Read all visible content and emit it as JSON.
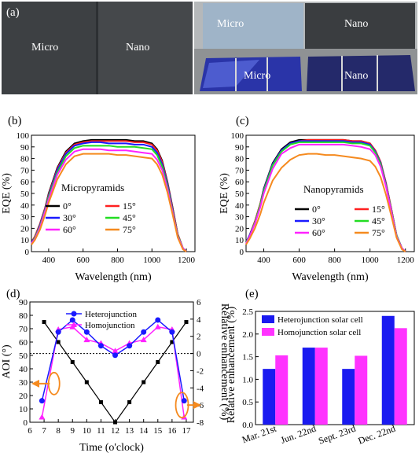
{
  "colors": {
    "black": "#000000",
    "red": "#ff2020",
    "blue": "#1a1aff",
    "green": "#22dd22",
    "magenta": "#ff22ff",
    "orange": "#f58a1f",
    "navy": "#1a1af0",
    "pink": "#ff33ff",
    "waferGray": "#3e4143",
    "photoBg": "#8a8d8f"
  },
  "panel_a": {
    "tag": "(a)",
    "left_labels": [
      "Micro",
      "Nano"
    ],
    "right_top_labels": [
      "Micro",
      "Nano"
    ],
    "right_bottom_labels": [
      "Micro",
      "Nano"
    ]
  },
  "panel_b": {
    "tag": "(b)",
    "inset": "Micropyramids",
    "xlabel": "Wavelength (nm)",
    "ylabel": "EQE (%)",
    "legend": [
      "0°",
      "15°",
      "30°",
      "45°",
      "60°",
      "75°"
    ]
  },
  "panel_c": {
    "tag": "(c)",
    "inset": "Nanopyramids",
    "xlabel": "Wavelength (nm)",
    "ylabel": "EQE (%)",
    "legend": [
      "0°",
      "15°",
      "30°",
      "45°",
      "60°",
      "75°"
    ]
  },
  "panel_d": {
    "tag": "(d)",
    "xlabel": "Time (o'clock)",
    "ylabel_left": "AOI (°)",
    "ylabel_right": "Relative enhancement (%)",
    "legend": [
      "Heterojunction",
      "Homojunction"
    ]
  },
  "panel_e": {
    "tag": "(e)",
    "ylabel": "Relative enhancement (%)",
    "legend": [
      "Heterojunction solar cell",
      "Homojunction solar cell"
    ]
  },
  "chart_data": [
    {
      "type": "line",
      "panel": "b",
      "xlabel": "Wavelength (nm)",
      "ylabel": "EQE (%)",
      "xlim": [
        300,
        1250
      ],
      "ylim": [
        0,
        100
      ],
      "xticks": [
        400,
        600,
        800,
        1000,
        1200
      ],
      "yticks": [
        0,
        10,
        20,
        30,
        40,
        50,
        60,
        70,
        80,
        90,
        100
      ],
      "x": [
        300,
        320,
        350,
        380,
        400,
        450,
        500,
        550,
        600,
        650,
        700,
        750,
        800,
        850,
        900,
        950,
        1000,
        1030,
        1060,
        1090,
        1120,
        1150,
        1180,
        1200
      ],
      "series": [
        {
          "name": "0°",
          "color": "#000000",
          "values": [
            8,
            13,
            24,
            38,
            50,
            72,
            86,
            93,
            95,
            96,
            96,
            96,
            96,
            96,
            95,
            95,
            93,
            88,
            78,
            60,
            38,
            15,
            3,
            0
          ]
        },
        {
          "name": "15°",
          "color": "#ff2020",
          "values": [
            8,
            13,
            24,
            38,
            49,
            71,
            85,
            92,
            94,
            95,
            95,
            95,
            95,
            95,
            94,
            94,
            92,
            87,
            77,
            59,
            37,
            15,
            3,
            0
          ]
        },
        {
          "name": "30°",
          "color": "#1a1aff",
          "values": [
            8,
            12,
            23,
            37,
            48,
            70,
            84,
            91,
            93,
            94,
            94,
            93,
            93,
            93,
            92,
            92,
            90,
            85,
            75,
            58,
            36,
            14,
            3,
            0
          ]
        },
        {
          "name": "45°",
          "color": "#22dd22",
          "values": [
            7,
            12,
            22,
            36,
            47,
            68,
            82,
            89,
            91,
            91,
            91,
            91,
            90,
            90,
            90,
            89,
            88,
            83,
            73,
            56,
            35,
            14,
            3,
            0
          ]
        },
        {
          "name": "60°",
          "color": "#ff22ff",
          "values": [
            7,
            11,
            21,
            35,
            45,
            66,
            79,
            86,
            88,
            88,
            88,
            87,
            87,
            87,
            86,
            85,
            84,
            79,
            70,
            54,
            34,
            13,
            3,
            0
          ]
        },
        {
          "name": "75°",
          "color": "#f58a1f",
          "values": [
            6,
            10,
            19,
            32,
            42,
            62,
            75,
            82,
            84,
            84,
            84,
            84,
            83,
            83,
            82,
            81,
            80,
            75,
            66,
            51,
            32,
            12,
            2,
            0
          ]
        }
      ]
    },
    {
      "type": "line",
      "panel": "c",
      "xlabel": "Wavelength (nm)",
      "ylabel": "EQE (%)",
      "xlim": [
        300,
        1250
      ],
      "ylim": [
        0,
        100
      ],
      "xticks": [
        400,
        600,
        800,
        1000,
        1200
      ],
      "yticks": [
        0,
        10,
        20,
        30,
        40,
        50,
        60,
        70,
        80,
        90,
        100
      ],
      "x": [
        300,
        320,
        350,
        380,
        400,
        450,
        500,
        550,
        600,
        650,
        700,
        750,
        800,
        850,
        900,
        950,
        1000,
        1030,
        1060,
        1090,
        1120,
        1150,
        1180,
        1200
      ],
      "series": [
        {
          "name": "0°",
          "color": "#000000",
          "values": [
            8,
            14,
            26,
            41,
            54,
            76,
            88,
            94,
            96,
            96,
            96,
            96,
            96,
            96,
            95,
            95,
            93,
            87,
            77,
            59,
            37,
            14,
            3,
            0
          ]
        },
        {
          "name": "15°",
          "color": "#ff2020",
          "values": [
            8,
            14,
            26,
            41,
            53,
            75,
            87,
            93,
            95,
            96,
            96,
            96,
            96,
            96,
            95,
            95,
            93,
            87,
            77,
            59,
            37,
            14,
            3,
            0
          ]
        },
        {
          "name": "30°",
          "color": "#1a1aff",
          "values": [
            8,
            14,
            25,
            40,
            53,
            75,
            87,
            93,
            95,
            95,
            95,
            95,
            95,
            95,
            94,
            94,
            92,
            86,
            76,
            58,
            36,
            14,
            3,
            0
          ]
        },
        {
          "name": "45°",
          "color": "#22dd22",
          "values": [
            8,
            13,
            25,
            40,
            52,
            74,
            86,
            92,
            94,
            94,
            94,
            94,
            94,
            94,
            93,
            93,
            91,
            85,
            75,
            57,
            36,
            14,
            3,
            0
          ]
        },
        {
          "name": "60°",
          "color": "#ff22ff",
          "values": [
            7,
            13,
            24,
            38,
            50,
            71,
            84,
            89,
            92,
            92,
            92,
            92,
            92,
            92,
            91,
            90,
            88,
            83,
            73,
            56,
            35,
            13,
            3,
            0
          ]
        },
        {
          "name": "75°",
          "color": "#f58a1f",
          "values": [
            6,
            11,
            20,
            32,
            42,
            61,
            72,
            79,
            83,
            84,
            84,
            83,
            83,
            82,
            81,
            80,
            78,
            73,
            64,
            49,
            31,
            12,
            2,
            0
          ]
        }
      ]
    },
    {
      "type": "line",
      "panel": "d",
      "xlabel": "Time (o'clock)",
      "ylabel": "AOI (°)",
      "ylabel_right": "Relative enhancement (%)",
      "xlim": [
        6,
        17.5
      ],
      "ylim": [
        0,
        90
      ],
      "ylim_right": [
        -8,
        6
      ],
      "xticks": [
        6,
        7,
        8,
        9,
        10,
        11,
        12,
        13,
        14,
        15,
        16,
        17
      ],
      "yticks": [
        0,
        10,
        20,
        30,
        40,
        50,
        60,
        70,
        80,
        90
      ],
      "yticks_right": [
        -8,
        -6,
        -4,
        -2,
        0,
        2,
        4,
        6
      ],
      "aoi": {
        "x": [
          7,
          8,
          9,
          10,
          11,
          12,
          13,
          14,
          15,
          16,
          17
        ],
        "values": [
          75,
          60,
          45,
          30,
          15,
          0,
          15,
          30,
          45,
          60,
          75
        ]
      },
      "series": [
        {
          "name": "Heterojunction",
          "color": "#1a1aff",
          "x": [
            6.85,
            8,
            9,
            10,
            11,
            12,
            13,
            14,
            15,
            16,
            16.85
          ],
          "values": [
            -5.5,
            2.5,
            3.9,
            2.5,
            0.9,
            -0.2,
            0.9,
            2.5,
            3.9,
            2.5,
            -5.5
          ]
        },
        {
          "name": "Homojunction",
          "color": "#ff22ff",
          "x": [
            6.85,
            8,
            9,
            10,
            11,
            12,
            13,
            14,
            15,
            16,
            16.85
          ],
          "values": [
            -7.4,
            2.8,
            3.1,
            1.6,
            1.2,
            0.3,
            1.2,
            1.6,
            3.1,
            2.8,
            -7.4
          ]
        }
      ],
      "reference_line": 0
    },
    {
      "type": "bar",
      "panel": "e",
      "ylabel": "Relative enhancement (%)",
      "ylim": [
        0,
        2.5
      ],
      "yticks": [
        0,
        0.5,
        1.0,
        1.5,
        2.0,
        2.5
      ],
      "categories": [
        "Mar. 21st",
        "Jun. 22nd",
        "Sept. 23rd",
        "Dec. 22nd"
      ],
      "series": [
        {
          "name": "Heterojunction solar cell",
          "color": "#1a1af0",
          "values": [
            1.23,
            1.7,
            1.23,
            2.4
          ]
        },
        {
          "name": "Homojunction solar cell",
          "color": "#ff33ff",
          "values": [
            1.53,
            1.7,
            1.52,
            2.13
          ]
        }
      ]
    }
  ]
}
